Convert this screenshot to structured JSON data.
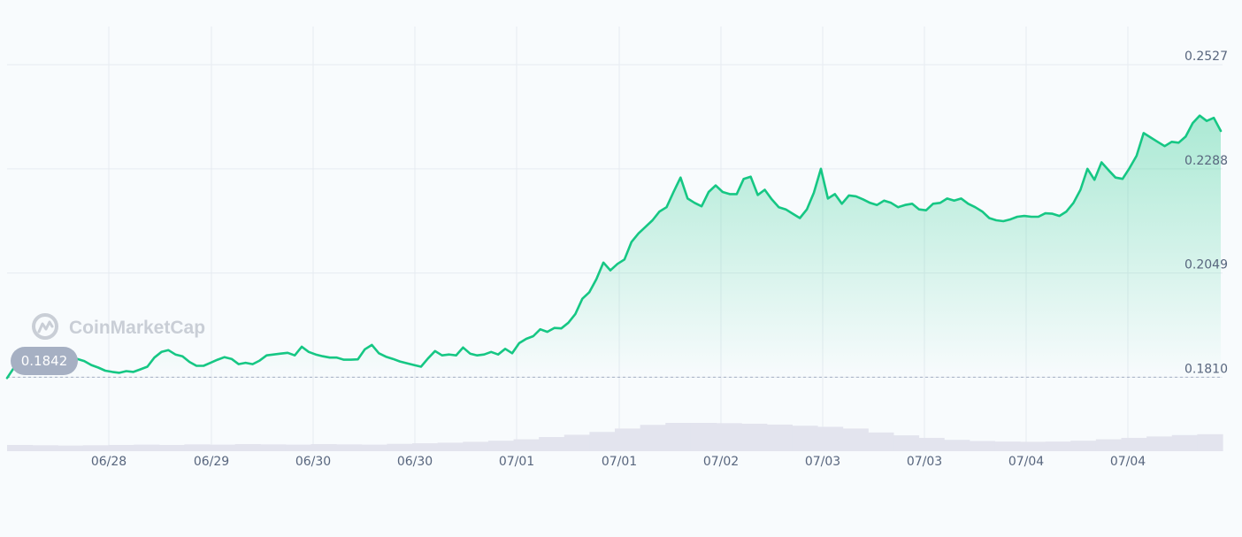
{
  "watermark": {
    "text": "CoinMarketCap",
    "icon": "coinmarketcap-logo-icon"
  },
  "colors": {
    "line": "#16c784",
    "area_top": "#16c784",
    "grid": "#e6ebf1",
    "volume": "#e3e4ee",
    "axis_text": "#58667e",
    "badge_bg": "#a6b0c3",
    "reference_line": "#a6b0c3"
  },
  "chart_data": {
    "type": "area",
    "x_tick_labels": [
      "06/28",
      "06/29",
      "06/30",
      "06/30",
      "07/01",
      "07/01",
      "07/02",
      "07/03",
      "07/03",
      "07/04",
      "07/04"
    ],
    "y_tick_labels": [
      "0.2527",
      "0.2288",
      "0.2049",
      "0.1810"
    ],
    "ylim": [
      0.1762,
      0.2582
    ],
    "open_price": 0.1842,
    "open_price_label": "0.1842",
    "reference_value": 0.181,
    "series": [
      {
        "values": [
          0.1808,
          0.1832,
          0.1845,
          0.1838,
          0.1852,
          0.1841,
          0.1855,
          0.1849,
          0.1858,
          0.186,
          0.1852,
          0.1847,
          0.1838,
          0.1832,
          0.1825,
          0.1822,
          0.182,
          0.1824,
          0.1822,
          0.1828,
          0.1834,
          0.1855,
          0.1868,
          0.1872,
          0.1862,
          0.1858,
          0.1845,
          0.1836,
          0.1836,
          0.1843,
          0.185,
          0.1856,
          0.1852,
          0.184,
          0.1843,
          0.184,
          0.1848,
          0.186,
          0.1862,
          0.1864,
          0.1866,
          0.186,
          0.188,
          0.1868,
          0.1862,
          0.1858,
          0.1855,
          0.1855,
          0.185,
          0.185,
          0.1851,
          0.1874,
          0.1884,
          0.1865,
          0.1857,
          0.1852,
          0.1846,
          0.1842,
          0.1838,
          0.1834,
          0.1853,
          0.187,
          0.186,
          0.1862,
          0.186,
          0.1878,
          0.1864,
          0.186,
          0.1862,
          0.1868,
          0.1862,
          0.1875,
          0.1865,
          0.1888,
          0.1898,
          0.1904,
          0.192,
          0.1914,
          0.1923,
          0.1922,
          0.1935,
          0.1955,
          0.199,
          0.2005,
          0.2035,
          0.2073,
          0.2055,
          0.207,
          0.208,
          0.212,
          0.214,
          0.2155,
          0.217,
          0.219,
          0.22,
          0.2235,
          0.2268,
          0.222,
          0.221,
          0.2202,
          0.2235,
          0.225,
          0.2235,
          0.223,
          0.223,
          0.2265,
          0.227,
          0.2228,
          0.224,
          0.2218,
          0.22,
          0.2195,
          0.2185,
          0.2175,
          0.2195,
          0.2233,
          0.2288,
          0.222,
          0.223,
          0.2208,
          0.2227,
          0.2225,
          0.2218,
          0.221,
          0.2205,
          0.2215,
          0.221,
          0.22,
          0.2205,
          0.2208,
          0.2195,
          0.2193,
          0.2208,
          0.221,
          0.222,
          0.2215,
          0.222,
          0.2208,
          0.22,
          0.219,
          0.2175,
          0.217,
          0.2168,
          0.2172,
          0.2178,
          0.218,
          0.2178,
          0.2178,
          0.2186,
          0.2185,
          0.218,
          0.219,
          0.221,
          0.224,
          0.2288,
          0.2263,
          0.2303,
          0.2285,
          0.2268,
          0.2265,
          0.229,
          0.2318,
          0.237,
          0.236,
          0.235,
          0.234,
          0.235,
          0.2348,
          0.2362,
          0.2393,
          0.241,
          0.2398,
          0.2405,
          0.2375
        ]
      }
    ],
    "volume_relative": [
      0.22,
      0.21,
      0.2,
      0.21,
      0.22,
      0.23,
      0.22,
      0.24,
      0.23,
      0.25,
      0.24,
      0.23,
      0.25,
      0.24,
      0.23,
      0.26,
      0.28,
      0.3,
      0.33,
      0.37,
      0.42,
      0.5,
      0.58,
      0.68,
      0.8,
      0.93,
      1.0,
      1.0,
      0.99,
      0.97,
      0.94,
      0.9,
      0.86,
      0.8,
      0.66,
      0.56,
      0.47,
      0.4,
      0.36,
      0.34,
      0.33,
      0.34,
      0.37,
      0.42,
      0.47,
      0.52,
      0.57,
      0.6
    ]
  }
}
